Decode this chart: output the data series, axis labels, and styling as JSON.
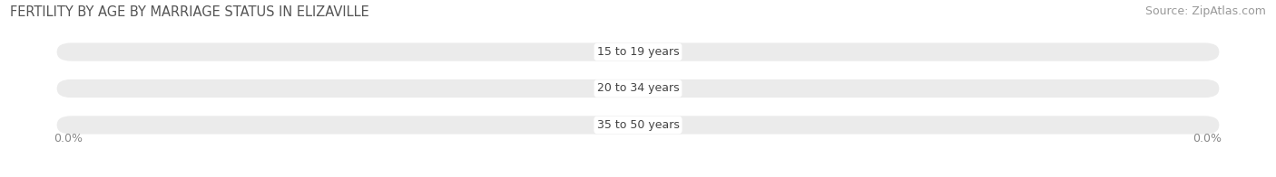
{
  "title": "FERTILITY BY AGE BY MARRIAGE STATUS IN ELIZAVILLE",
  "source": "Source: ZipAtlas.com",
  "categories": [
    "15 to 19 years",
    "20 to 34 years",
    "35 to 50 years"
  ],
  "married_values": [
    0.0,
    0.0,
    0.0
  ],
  "unmarried_values": [
    0.0,
    0.0,
    0.0
  ],
  "married_color": "#4bbfbf",
  "unmarried_color": "#f48fb1",
  "bar_bg_color": "#ebebeb",
  "title_fontsize": 10.5,
  "source_fontsize": 9,
  "label_fontsize": 9,
  "value_fontsize": 8.5,
  "legend_fontsize": 10,
  "background_color": "#ffffff",
  "x_left_label": "0.0%",
  "x_right_label": "0.0%"
}
